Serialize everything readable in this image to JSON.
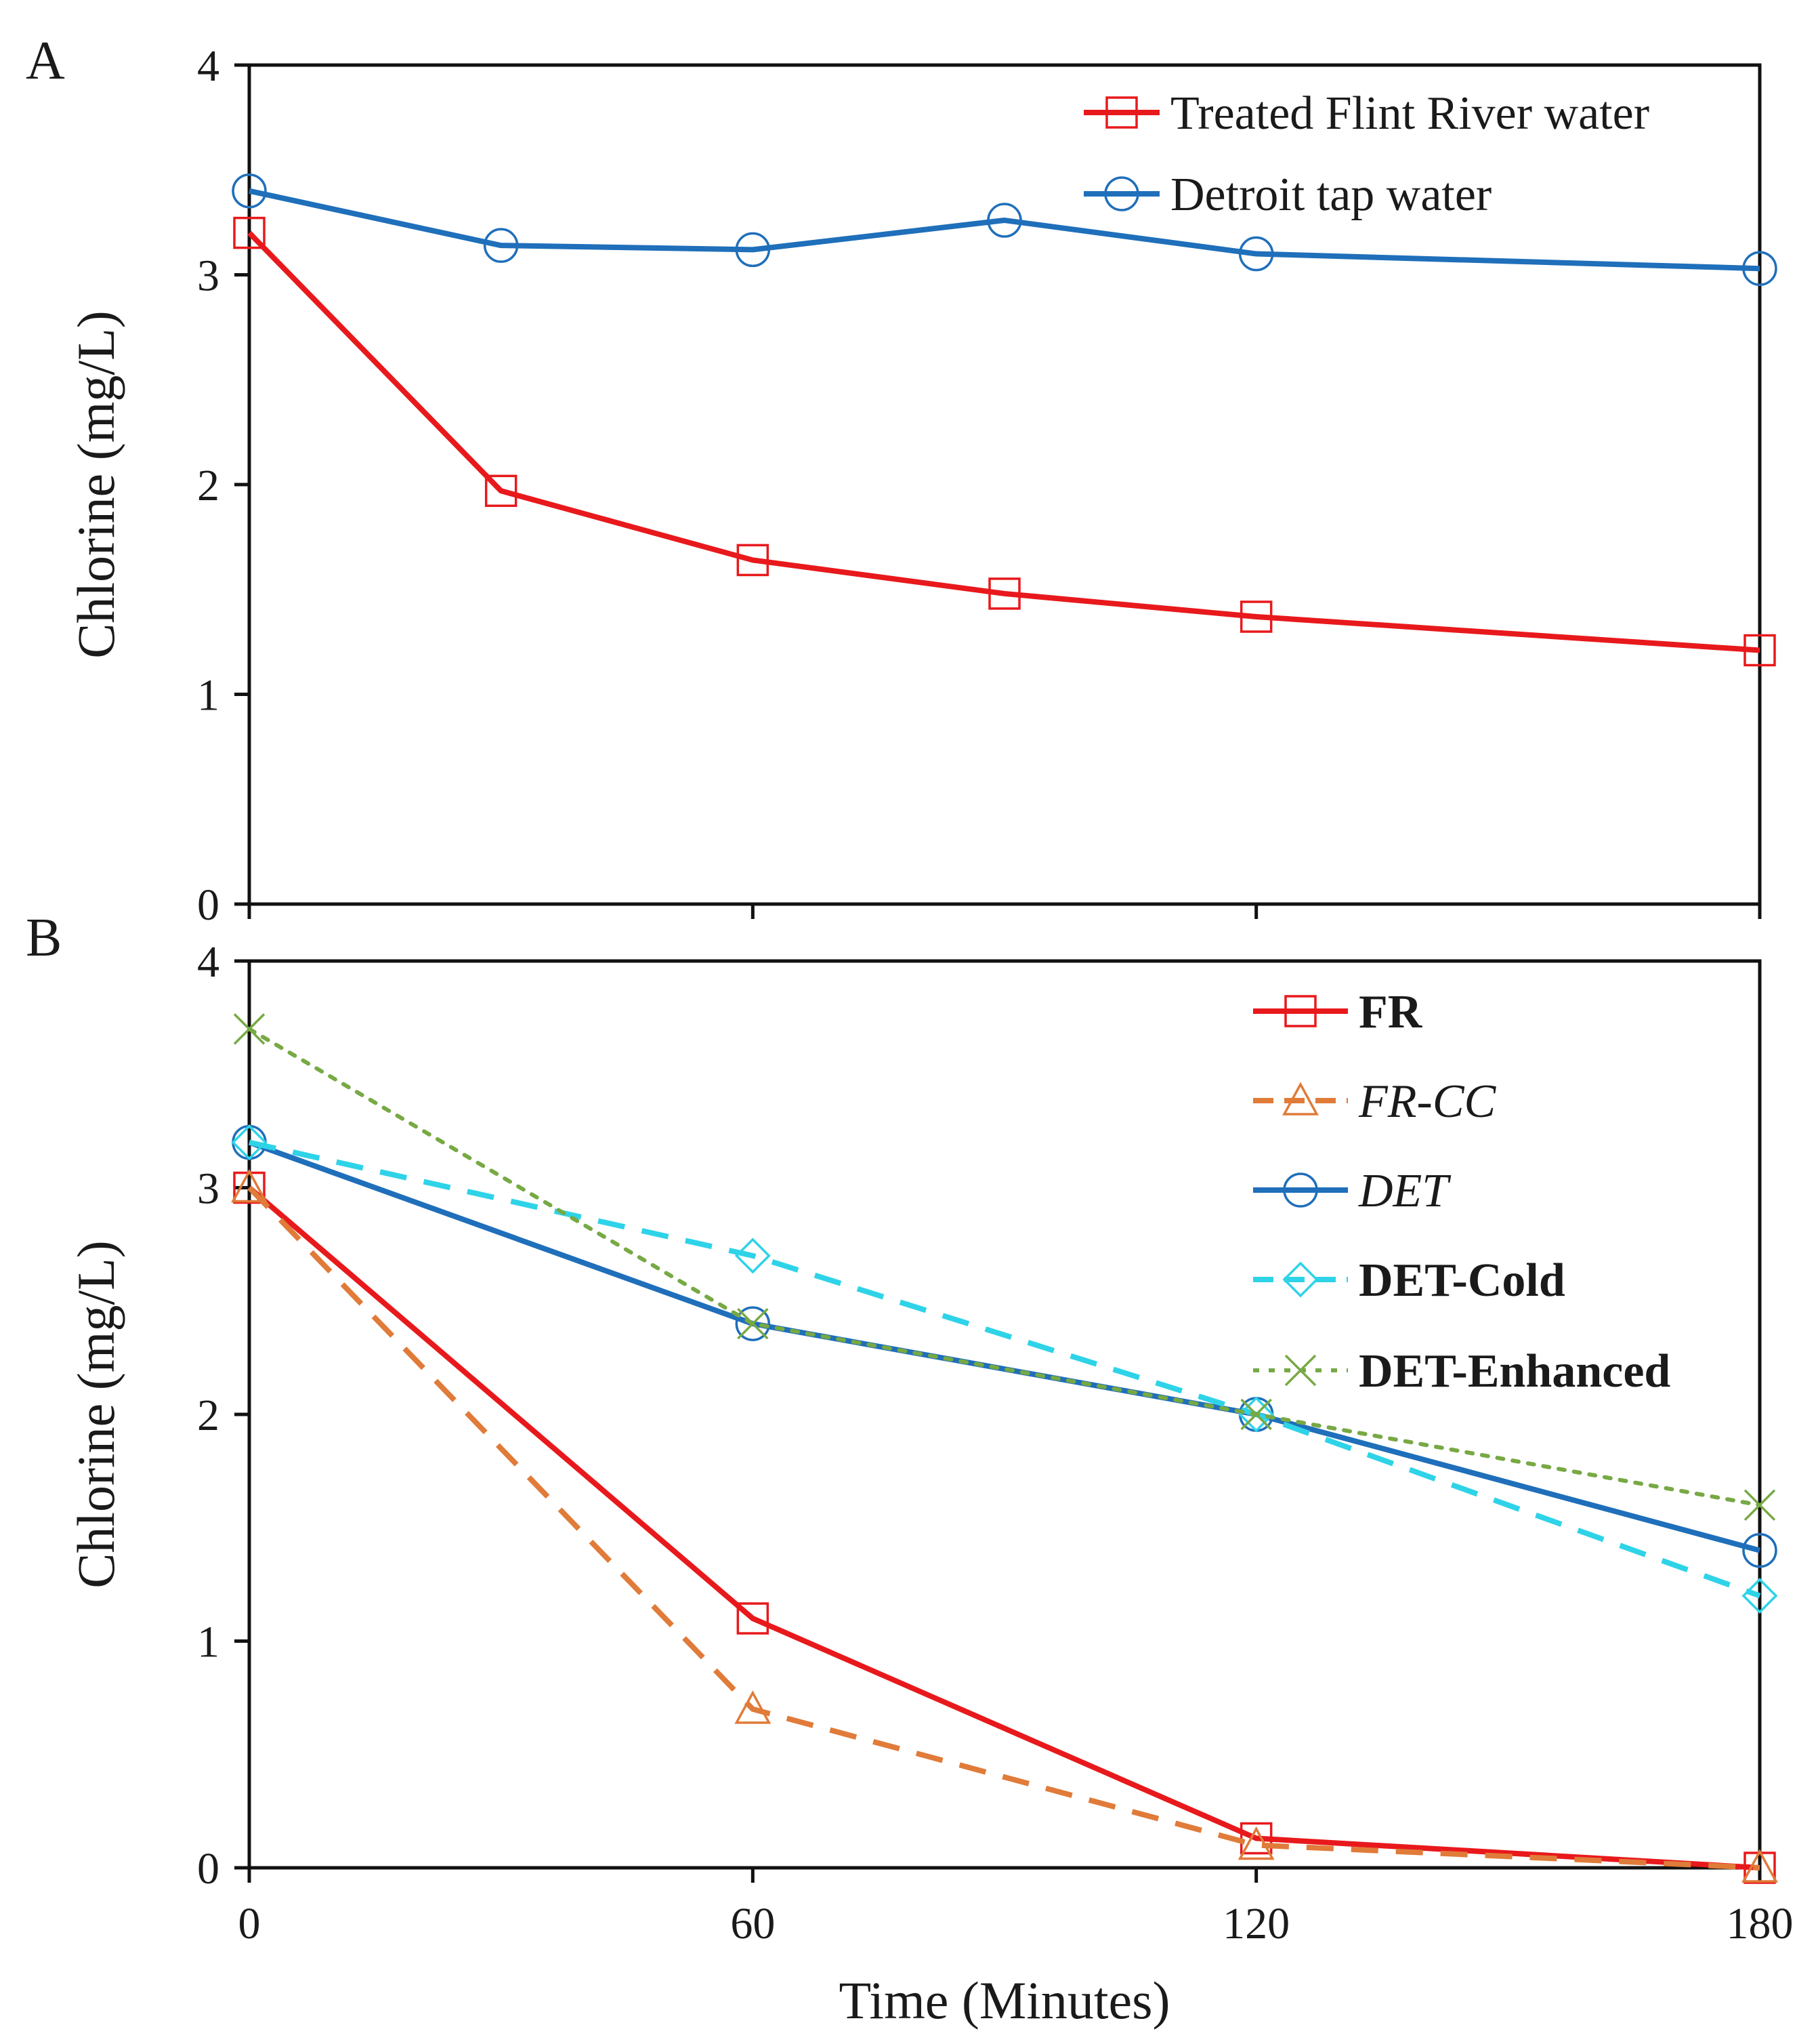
{
  "chart_data": [
    {
      "type": "line",
      "panel_label": "A",
      "ylabel": "Chlorine (mg/L)",
      "xlabel": "",
      "xlim": [
        0,
        180
      ],
      "ylim": [
        0,
        4
      ],
      "x_ticks": [
        0,
        60,
        120,
        180
      ],
      "y_ticks": [
        0,
        1,
        2,
        3,
        4
      ],
      "show_x_tick_labels": false,
      "grid": false,
      "legend_position": "top-right",
      "series": [
        {
          "name": "Treated Flint River water",
          "color": "#e8191c",
          "dash": "solid",
          "marker": "square",
          "style": "normal",
          "x": [
            0,
            30,
            60,
            90,
            120,
            180
          ],
          "values": [
            3.2,
            1.97,
            1.64,
            1.48,
            1.37,
            1.21
          ]
        },
        {
          "name": "Detroit tap water",
          "color": "#1f6fba",
          "dash": "solid",
          "marker": "circle",
          "style": "normal",
          "x": [
            0,
            30,
            60,
            90,
            120,
            180
          ],
          "values": [
            3.4,
            3.14,
            3.12,
            3.26,
            3.1,
            3.03
          ]
        }
      ]
    },
    {
      "type": "line",
      "panel_label": "B",
      "ylabel": "Chlorine (mg/L)",
      "xlabel": "Time (Minutes)",
      "xlim": [
        0,
        180
      ],
      "ylim": [
        0,
        4
      ],
      "x_ticks": [
        0,
        60,
        120,
        180
      ],
      "y_ticks": [
        0,
        1,
        2,
        3,
        4
      ],
      "show_x_tick_labels": true,
      "grid": false,
      "legend_position": "top-right",
      "series": [
        {
          "name": "FR",
          "color": "#e8191c",
          "dash": "solid",
          "marker": "square",
          "style": "bold",
          "x": [
            0,
            60,
            120,
            180
          ],
          "values": [
            3.0,
            1.1,
            0.13,
            0.0
          ]
        },
        {
          "name": "FR-CC",
          "color": "#e07b39",
          "dash": "dashed",
          "marker": "triangle",
          "style": "italic",
          "x": [
            0,
            60,
            120,
            180
          ],
          "values": [
            3.0,
            0.7,
            0.1,
            0.0
          ]
        },
        {
          "name": "DET",
          "color": "#1f6fba",
          "dash": "solid",
          "marker": "circle",
          "style": "italic",
          "x": [
            0,
            60,
            120,
            180
          ],
          "values": [
            3.2,
            2.4,
            2.0,
            1.4
          ]
        },
        {
          "name": "DET-Cold",
          "color": "#2ed3e8",
          "dash": "dashed",
          "marker": "diamond",
          "style": "bold",
          "x": [
            0,
            60,
            120,
            180
          ],
          "values": [
            3.2,
            2.7,
            2.0,
            1.2
          ]
        },
        {
          "name": "DET-Enhanced",
          "color": "#77a944",
          "dash": "dotted",
          "marker": "cross",
          "style": "bold",
          "x": [
            0,
            60,
            120,
            180
          ],
          "values": [
            3.7,
            2.4,
            2.0,
            1.6
          ]
        }
      ]
    }
  ]
}
